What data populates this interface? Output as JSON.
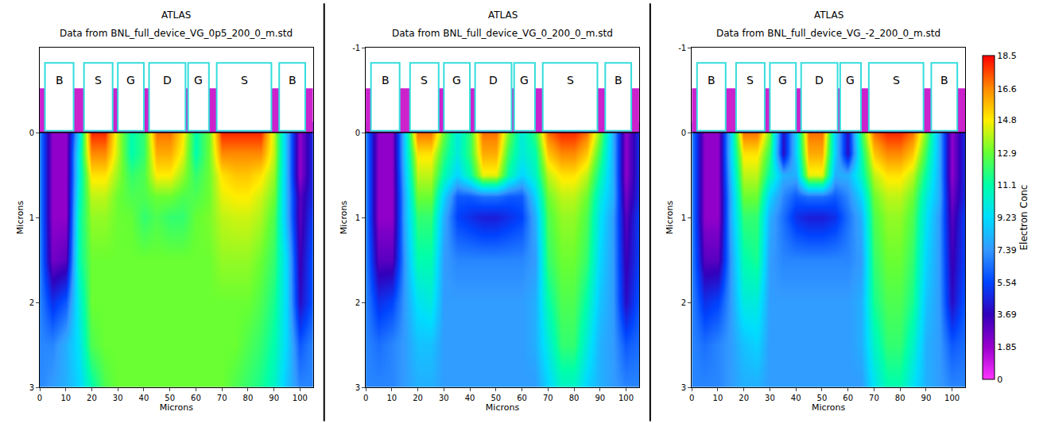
{
  "chart_data": [
    {
      "type": "heatmap",
      "title": "ATLAS",
      "subtitle": "Data from BNL_full_device_VG_0p5_200_0_m.std",
      "x_label": "Microns",
      "y_label": "Microns",
      "x": [
        0,
        5,
        10,
        15,
        20,
        25,
        30,
        35,
        40,
        45,
        50,
        55,
        60,
        65,
        70,
        75,
        80,
        85,
        90,
        95,
        100,
        105
      ],
      "y": [
        0,
        0.25,
        0.5,
        0.75,
        1,
        1.5,
        2,
        2.5,
        3
      ],
      "cells": [
        [
          7,
          2,
          2,
          9,
          18,
          18,
          14,
          11,
          12,
          17,
          17,
          15,
          11,
          13,
          18,
          18,
          18,
          18,
          14,
          8,
          2,
          5
        ],
        [
          7,
          2,
          2,
          10,
          16.6,
          16.6,
          14,
          11,
          12,
          16,
          16,
          14.5,
          11,
          13,
          16.6,
          16.6,
          16.6,
          16.6,
          14,
          8,
          2,
          5
        ],
        [
          7,
          2,
          2,
          10,
          15,
          15,
          13.5,
          12,
          12.5,
          14.8,
          14.8,
          13.5,
          12,
          13,
          15,
          15.5,
          15.5,
          15,
          13.5,
          8,
          2,
          5
        ],
        [
          7,
          2,
          2,
          10.5,
          14,
          14,
          13,
          12.5,
          12.5,
          13,
          13,
          12.5,
          12.5,
          13,
          14.5,
          14.8,
          14.8,
          14.2,
          13,
          8,
          3,
          5
        ],
        [
          7,
          2,
          2,
          11,
          13.5,
          13.5,
          13,
          12.9,
          12,
          12.5,
          12,
          12,
          12.9,
          13.2,
          14,
          14.2,
          14.2,
          13.8,
          12.5,
          8,
          3,
          5.5
        ],
        [
          7,
          2.5,
          3,
          11,
          13,
          13,
          13,
          13,
          13,
          13,
          13,
          13,
          13,
          13,
          13.5,
          13.5,
          13.5,
          13,
          12,
          9,
          3.5,
          6
        ],
        [
          7,
          5,
          6,
          10,
          13,
          13,
          13,
          13,
          13,
          13,
          13,
          13,
          13,
          13,
          13,
          13,
          13,
          12.5,
          11.5,
          9,
          4,
          6
        ],
        [
          7,
          7,
          8,
          9.5,
          12.5,
          13,
          13,
          13,
          13,
          13,
          13,
          13,
          13,
          13,
          13,
          13,
          12.5,
          12,
          11,
          9,
          6,
          7
        ],
        [
          7,
          7.5,
          8,
          9,
          11,
          12.5,
          13,
          13,
          13,
          13,
          13,
          13,
          13,
          13,
          13,
          12.5,
          12,
          11.5,
          10.5,
          8.5,
          7,
          7
        ]
      ],
      "xlim": [
        0,
        105
      ],
      "ylim": [
        3,
        -1
      ],
      "xticks": [
        0,
        10,
        20,
        30,
        40,
        50,
        60,
        70,
        80,
        90,
        100
      ],
      "yticks": [
        0,
        1,
        2,
        3
      ],
      "electrodes": [
        {
          "label": "B",
          "x0": 2,
          "x1": 13
        },
        {
          "label": "S",
          "x0": 17,
          "x1": 28
        },
        {
          "label": "G",
          "x0": 30,
          "x1": 40
        },
        {
          "label": "D",
          "x0": 42,
          "x1": 56
        },
        {
          "label": "G",
          "x0": 57,
          "x1": 65
        },
        {
          "label": "S",
          "x0": 68,
          "x1": 89
        },
        {
          "label": "B",
          "x0": 92,
          "x1": 102
        }
      ]
    },
    {
      "type": "heatmap",
      "title": "ATLAS",
      "subtitle": "Data from BNL_full_device_VG_0_200_0_m.std",
      "x_label": "Microns",
      "y_label": "Microns",
      "x": [
        0,
        5,
        10,
        15,
        20,
        25,
        30,
        35,
        40,
        45,
        50,
        55,
        60,
        65,
        70,
        75,
        80,
        85,
        90,
        95,
        100,
        105
      ],
      "y": [
        0,
        0.25,
        0.5,
        0.75,
        1,
        1.5,
        2,
        2.5,
        3
      ],
      "cells": [
        [
          7,
          2,
          2,
          9,
          17,
          17,
          13,
          10,
          12,
          17,
          17,
          13,
          10,
          12,
          17,
          18,
          18,
          17,
          13,
          8,
          2,
          5
        ],
        [
          7,
          2,
          2,
          9,
          15,
          15,
          12,
          10,
          12,
          16,
          16,
          12,
          10,
          11,
          15.5,
          16.6,
          16.6,
          15.5,
          12,
          8,
          2,
          5
        ],
        [
          7,
          2,
          2,
          8.5,
          14,
          14,
          11,
          9,
          11,
          14.5,
          14.5,
          11,
          9,
          10.5,
          14,
          15,
          15,
          14,
          11,
          8,
          2,
          5
        ],
        [
          7,
          2,
          2,
          8,
          13,
          13,
          9,
          6,
          6,
          6.5,
          6.5,
          6,
          6,
          9,
          13,
          14,
          14,
          13,
          10,
          8,
          2.5,
          5
        ],
        [
          7,
          2,
          2,
          8,
          12,
          12,
          8,
          5.5,
          5,
          4.5,
          4.5,
          5,
          5.5,
          8,
          12.5,
          13.5,
          13.5,
          12.5,
          9.5,
          7.5,
          3,
          5.5
        ],
        [
          7,
          3,
          3,
          7.5,
          11,
          11,
          7.5,
          7,
          7,
          7,
          7,
          7,
          7,
          7.5,
          12,
          13,
          13,
          12,
          9,
          7.5,
          3.5,
          5.5
        ],
        [
          7,
          5,
          5.5,
          7.5,
          9.5,
          10,
          7.5,
          7.5,
          7.5,
          7.5,
          7.5,
          7.5,
          7.5,
          8,
          11,
          12.5,
          12.5,
          11,
          8.5,
          7.5,
          4,
          6
        ],
        [
          7,
          6.5,
          7,
          7.5,
          8.5,
          8.5,
          7.5,
          7.5,
          7.5,
          7.5,
          7.5,
          7.5,
          7.5,
          8,
          10,
          12,
          12,
          10,
          8,
          7.5,
          6,
          6.5
        ],
        [
          7,
          7,
          7,
          7.5,
          8,
          8,
          7.5,
          7.5,
          7.5,
          7.5,
          7.5,
          7.5,
          7.5,
          7.5,
          9,
          10.5,
          10.5,
          9,
          8,
          7.5,
          7,
          7
        ]
      ],
      "xlim": [
        0,
        105
      ],
      "ylim": [
        3,
        -1
      ],
      "xticks": [
        0,
        10,
        20,
        30,
        40,
        50,
        60,
        70,
        80,
        90,
        100
      ],
      "yticks": [
        -1,
        0,
        1,
        2,
        3
      ],
      "electrodes": [
        {
          "label": "B",
          "x0": 2,
          "x1": 13
        },
        {
          "label": "S",
          "x0": 17,
          "x1": 28
        },
        {
          "label": "G",
          "x0": 30,
          "x1": 40
        },
        {
          "label": "D",
          "x0": 42,
          "x1": 56
        },
        {
          "label": "G",
          "x0": 57,
          "x1": 65
        },
        {
          "label": "S",
          "x0": 68,
          "x1": 89
        },
        {
          "label": "B",
          "x0": 92,
          "x1": 102
        }
      ]
    },
    {
      "type": "heatmap",
      "title": "ATLAS",
      "subtitle": "Data from BNL_full_device_VG_-2_200_0_m.std",
      "x_label": "Microns",
      "y_label": "Microns",
      "x": [
        0,
        5,
        10,
        15,
        20,
        25,
        30,
        35,
        40,
        45,
        50,
        55,
        60,
        65,
        70,
        75,
        80,
        85,
        90,
        95,
        100,
        105
      ],
      "y": [
        0,
        0.25,
        0.5,
        0.75,
        1,
        1.5,
        2,
        2.5,
        3
      ],
      "cells": [
        [
          7,
          2,
          2,
          9,
          17,
          17,
          13,
          4,
          9,
          17,
          17,
          9,
          4,
          12,
          17,
          18,
          18,
          17,
          13,
          8,
          2,
          5
        ],
        [
          7,
          2,
          2,
          9,
          15,
          15,
          12,
          4,
          9,
          16,
          16,
          9,
          4,
          11,
          15.5,
          16.6,
          16.6,
          15.5,
          12,
          8,
          2,
          5
        ],
        [
          7,
          2,
          2,
          8.5,
          14,
          14,
          11,
          8,
          8,
          14.5,
          14.5,
          8,
          8,
          10.5,
          14,
          15,
          15,
          14,
          11,
          8,
          2,
          5
        ],
        [
          7,
          2,
          2,
          8,
          13,
          13,
          9,
          7,
          6,
          6.5,
          6.5,
          6,
          7,
          9,
          13,
          14,
          14,
          13,
          10,
          8,
          2.5,
          5
        ],
        [
          7,
          2,
          2,
          8,
          12,
          12,
          8,
          6.5,
          5,
          4.5,
          4.5,
          5,
          6.5,
          8,
          12.5,
          13.5,
          13.5,
          12.5,
          9.5,
          7.5,
          3,
          5.5
        ],
        [
          7,
          3,
          3,
          7.5,
          11,
          11.5,
          7.5,
          7,
          7,
          7,
          7,
          7,
          7,
          7.5,
          12,
          13,
          13,
          12,
          9,
          7.5,
          3.5,
          5.5
        ],
        [
          7,
          5,
          5.5,
          7.5,
          10,
          10,
          7.5,
          7.5,
          7.5,
          7.5,
          7.5,
          7.5,
          7.5,
          8,
          11.5,
          12.5,
          12.5,
          11.5,
          8.5,
          7.5,
          4,
          6
        ],
        [
          7,
          6.5,
          7,
          7.5,
          8.5,
          9,
          7.5,
          7.5,
          7.5,
          7.5,
          7.5,
          7.5,
          7.5,
          8,
          10.5,
          12,
          12,
          10.5,
          8,
          7.5,
          6,
          6.5
        ],
        [
          7,
          7,
          7,
          7.5,
          8,
          8,
          7.5,
          7.5,
          7.5,
          7.5,
          7.5,
          7.5,
          7.5,
          7.5,
          9.5,
          11,
          11,
          9.5,
          8,
          7.5,
          7,
          7
        ]
      ],
      "xlim": [
        0,
        105
      ],
      "ylim": [
        3,
        -1
      ],
      "xticks": [
        0,
        10,
        20,
        30,
        40,
        50,
        60,
        70,
        80,
        90,
        100
      ],
      "yticks": [
        -1,
        0,
        1,
        2,
        3
      ],
      "electrodes": [
        {
          "label": "B",
          "x0": 2,
          "x1": 13
        },
        {
          "label": "S",
          "x0": 17,
          "x1": 28
        },
        {
          "label": "G",
          "x0": 30,
          "x1": 40
        },
        {
          "label": "D",
          "x0": 42,
          "x1": 56
        },
        {
          "label": "G",
          "x0": 57,
          "x1": 65
        },
        {
          "label": "S",
          "x0": 68,
          "x1": 89
        },
        {
          "label": "B",
          "x0": 92,
          "x1": 102
        }
      ]
    }
  ],
  "colorbar": {
    "title": "Electron Conc",
    "range": [
      0,
      18.5
    ],
    "ticks": [
      18.5,
      16.6,
      14.8,
      12.9,
      11.1,
      9.23,
      7.39,
      5.54,
      3.69,
      1.85,
      0
    ]
  }
}
